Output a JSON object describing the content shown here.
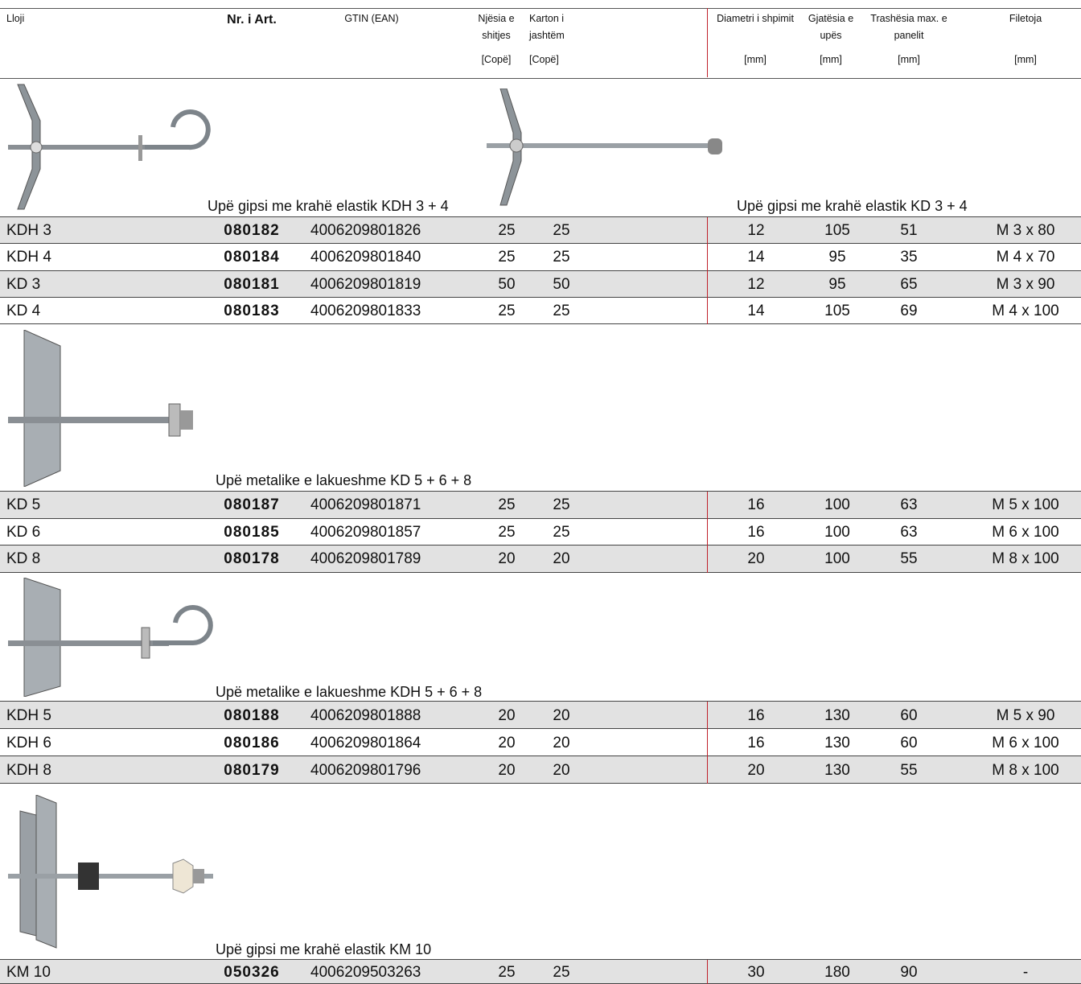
{
  "header": {
    "columns": [
      {
        "lines": [
          "Lloji"
        ]
      },
      {
        "lines": [
          "Nr. i Art."
        ]
      },
      {
        "lines": [
          "GTIN (EAN)"
        ]
      },
      {
        "lines": [
          "Njësia e",
          "shitjes"
        ],
        "unit": "[Copë]"
      },
      {
        "lines": [
          "Karton i",
          "jashtëm"
        ],
        "unit": "[Copë]"
      },
      {
        "lines": [
          "Diametri i shpimit"
        ],
        "unit": "[mm]"
      },
      {
        "lines": [
          "Gjatësia e",
          "upës"
        ],
        "unit": "[mm]"
      },
      {
        "lines": [
          "Trashësia max. e",
          "panelit"
        ],
        "unit": "[mm]"
      },
      {
        "lines": [
          "Filetoja"
        ],
        "unit": "[mm]"
      }
    ]
  },
  "sections": [
    {
      "captions": [
        "Upë gipsi me krahë elastik KDH 3 + 4",
        "Upë gipsi me krahë elastik KD 3 + 4"
      ],
      "rows": [
        [
          "KDH 3",
          "080182",
          "4006209801826",
          "25",
          "25",
          "12",
          "105",
          "51",
          "M 3 x 80"
        ],
        [
          "KDH 4",
          "080184",
          "4006209801840",
          "25",
          "25",
          "14",
          "95",
          "35",
          "M 4 x 70"
        ],
        [
          "KD 3",
          "080181",
          "4006209801819",
          "50",
          "50",
          "12",
          "95",
          "65",
          "M 3 x 90"
        ],
        [
          "KD 4",
          "080183",
          "4006209801833",
          "25",
          "25",
          "14",
          "105",
          "69",
          "M 4 x 100"
        ]
      ]
    },
    {
      "captions": [
        "Upë metalike e lakueshme KD 5 + 6 + 8"
      ],
      "rows": [
        [
          "KD 5",
          "080187",
          "4006209801871",
          "25",
          "25",
          "16",
          "100",
          "63",
          "M 5 x 100"
        ],
        [
          "KD 6",
          "080185",
          "4006209801857",
          "25",
          "25",
          "16",
          "100",
          "63",
          "M 6 x 100"
        ],
        [
          "KD 8",
          "080178",
          "4006209801789",
          "20",
          "20",
          "20",
          "100",
          "55",
          "M 8 x 100"
        ]
      ]
    },
    {
      "captions": [
        "Upë metalike e lakueshme KDH 5 + 6 + 8"
      ],
      "rows": [
        [
          "KDH 5",
          "080188",
          "4006209801888",
          "20",
          "20",
          "16",
          "130",
          "60",
          "M 5 x 90"
        ],
        [
          "KDH 6",
          "080186",
          "4006209801864",
          "20",
          "20",
          "16",
          "130",
          "60",
          "M 6 x 100"
        ],
        [
          "KDH 8",
          "080179",
          "4006209801796",
          "20",
          "20",
          "20",
          "130",
          "55",
          "M 8 x 100"
        ]
      ]
    },
    {
      "captions": [
        "Upë gipsi me krahë elastik KM 10"
      ],
      "rows": [
        [
          "KM 10",
          "050326",
          "4006209503263",
          "25",
          "25",
          "30",
          "180",
          "90",
          "-"
        ]
      ]
    }
  ]
}
